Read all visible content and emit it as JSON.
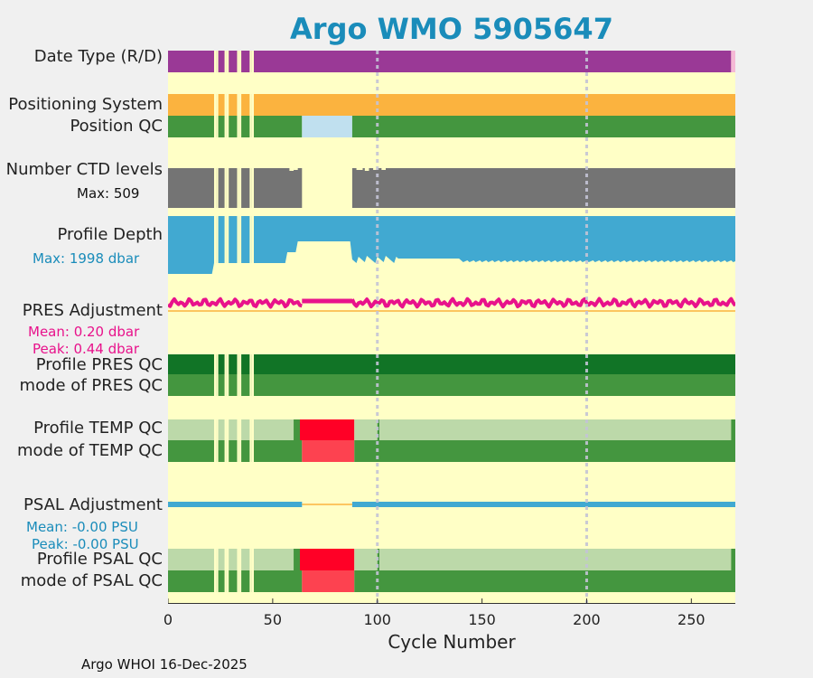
{
  "title": "Argo WMO 5905647",
  "footer": "Argo WHOI 16-Dec-2025",
  "colors": {
    "background": "#ffffc6",
    "data_mode": "#9a3996",
    "positioning": "#fbb33f",
    "qc_good": "#44963f",
    "qc_good_dark": "#117426",
    "qc_light": "#bcd9a9",
    "qc_bad": "#ff0026",
    "qc_bad_light": "#fd4250",
    "pos_qc_missing": "#c0e0ef",
    "ctd": "#747474",
    "depth": "#41a9d1",
    "pres": "#e8128b",
    "psal": "#41a9d1",
    "title": "#1a8cba"
  },
  "labels": {
    "data_type": "Date Type (R/D)",
    "positioning_system": "Positioning System",
    "position_qc": "Position QC",
    "number_ctd": "Number CTD levels",
    "ctd_max": "Max: 509",
    "profile_depth": "Profile Depth",
    "depth_max": "Max: 1998 dbar",
    "pres_adjustment": "PRES Adjustment",
    "pres_mean": "Mean: 0.20 dbar",
    "pres_peak": "Peak: 0.44 dbar",
    "profile_pres_qc": "Profile PRES QC",
    "mode_pres_qc": "mode of PRES QC",
    "profile_temp_qc": "Profile TEMP QC",
    "mode_temp_qc": "mode of TEMP QC",
    "psal_adjustment": "PSAL Adjustment",
    "psal_mean": "Mean: -0.00 PSU",
    "psal_peak": "Peak: -0.00 PSU",
    "profile_psal_qc": "Profile PSAL QC",
    "mode_psal_qc": "mode of PSAL QC"
  },
  "chart_data": {
    "type": "heatmap",
    "title": "Argo WMO 5905647",
    "xlabel": "Cycle Number",
    "xlim": [
      0,
      271
    ],
    "xticks": [
      0,
      50,
      100,
      150,
      200,
      250
    ],
    "vertical_gridlines_at": [
      100,
      200
    ],
    "missing_cycles": [
      22,
      23,
      27,
      28,
      33,
      34,
      39,
      40
    ],
    "rows": [
      {
        "name": "Date Type (R/D)",
        "segments": [
          {
            "from": 0,
            "to": 269,
            "color": "data_mode",
            "value": "R"
          },
          {
            "from": 269,
            "to": 271,
            "color": "#f5b9d6",
            "value": "D"
          }
        ]
      },
      {
        "name": "Positioning System",
        "segments": [
          {
            "from": 0,
            "to": 271,
            "color": "positioning",
            "value": "GPS"
          }
        ]
      },
      {
        "name": "Position QC",
        "segments": [
          {
            "from": 0,
            "to": 64,
            "color": "qc_good",
            "value": "1"
          },
          {
            "from": 64,
            "to": 88,
            "color": "pos_qc_missing",
            "value": "missing"
          },
          {
            "from": 88,
            "to": 271,
            "color": "qc_good",
            "value": "1"
          }
        ]
      },
      {
        "name": "Number CTD levels",
        "max": 509,
        "segments": [
          {
            "from": 0,
            "to": 64,
            "color": "ctd"
          },
          {
            "from": 88,
            "to": 271,
            "color": "ctd"
          }
        ]
      },
      {
        "name": "Profile Depth",
        "max_dbar": 1998
      },
      {
        "name": "PRES Adjustment",
        "mean_dbar": 0.2,
        "peak_dbar": 0.44
      },
      {
        "name": "Profile PRES QC",
        "segments": [
          {
            "from": 0,
            "to": 271,
            "color": "qc_good_dark",
            "value": "A"
          }
        ]
      },
      {
        "name": "mode of PRES QC",
        "segments": [
          {
            "from": 0,
            "to": 271,
            "color": "qc_good",
            "value": "1"
          }
        ]
      },
      {
        "name": "Profile TEMP QC",
        "segments": [
          {
            "from": 0,
            "to": 60,
            "color": "qc_light"
          },
          {
            "from": 60,
            "to": 63,
            "color": "qc_good"
          },
          {
            "from": 63,
            "to": 89,
            "color": "qc_bad"
          },
          {
            "from": 89,
            "to": 100,
            "color": "qc_light"
          },
          {
            "from": 100,
            "to": 101,
            "color": "qc_good"
          },
          {
            "from": 101,
            "to": 269,
            "color": "qc_light"
          },
          {
            "from": 269,
            "to": 271,
            "color": "qc_good"
          }
        ]
      },
      {
        "name": "mode of TEMP QC",
        "segments": [
          {
            "from": 0,
            "to": 64,
            "color": "qc_good"
          },
          {
            "from": 64,
            "to": 89,
            "color": "qc_bad_light"
          },
          {
            "from": 89,
            "to": 271,
            "color": "qc_good"
          }
        ]
      },
      {
        "name": "PSAL Adjustment",
        "mean_psu": -0.0,
        "peak_psu": -0.0
      },
      {
        "name": "Profile PSAL QC",
        "segments": [
          {
            "from": 0,
            "to": 60,
            "color": "qc_light"
          },
          {
            "from": 60,
            "to": 63,
            "color": "qc_good"
          },
          {
            "from": 63,
            "to": 89,
            "color": "qc_bad"
          },
          {
            "from": 89,
            "to": 100,
            "color": "qc_light"
          },
          {
            "from": 100,
            "to": 101,
            "color": "qc_good"
          },
          {
            "from": 101,
            "to": 269,
            "color": "qc_light"
          },
          {
            "from": 269,
            "to": 271,
            "color": "qc_good"
          }
        ]
      },
      {
        "name": "mode of PSAL QC",
        "segments": [
          {
            "from": 0,
            "to": 64,
            "color": "qc_good"
          },
          {
            "from": 64,
            "to": 89,
            "color": "qc_bad_light"
          },
          {
            "from": 89,
            "to": 271,
            "color": "qc_good"
          }
        ]
      }
    ]
  }
}
